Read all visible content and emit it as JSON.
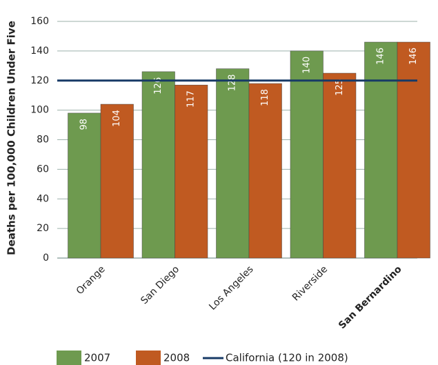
{
  "chart_data": {
    "type": "bar",
    "y_label": "Deaths per 100,000 Children Under Five",
    "categories": [
      "Orange",
      "San Diego",
      "Los Angeles",
      "Riverside",
      "San Bernardino"
    ],
    "series": [
      {
        "name": "2007",
        "color": "#6e9a4f",
        "values": [
          98,
          126,
          128,
          140,
          146
        ]
      },
      {
        "name": "2008",
        "color": "#c05a21",
        "values": [
          104,
          117,
          118,
          125,
          146
        ]
      }
    ],
    "reference_line": {
      "value": 120,
      "label": "California (120 in 2008)",
      "color": "#173a66"
    },
    "ylim": [
      0,
      160
    ],
    "yticks": [
      0,
      20,
      40,
      60,
      80,
      100,
      120,
      140,
      160
    ],
    "grid": true
  }
}
